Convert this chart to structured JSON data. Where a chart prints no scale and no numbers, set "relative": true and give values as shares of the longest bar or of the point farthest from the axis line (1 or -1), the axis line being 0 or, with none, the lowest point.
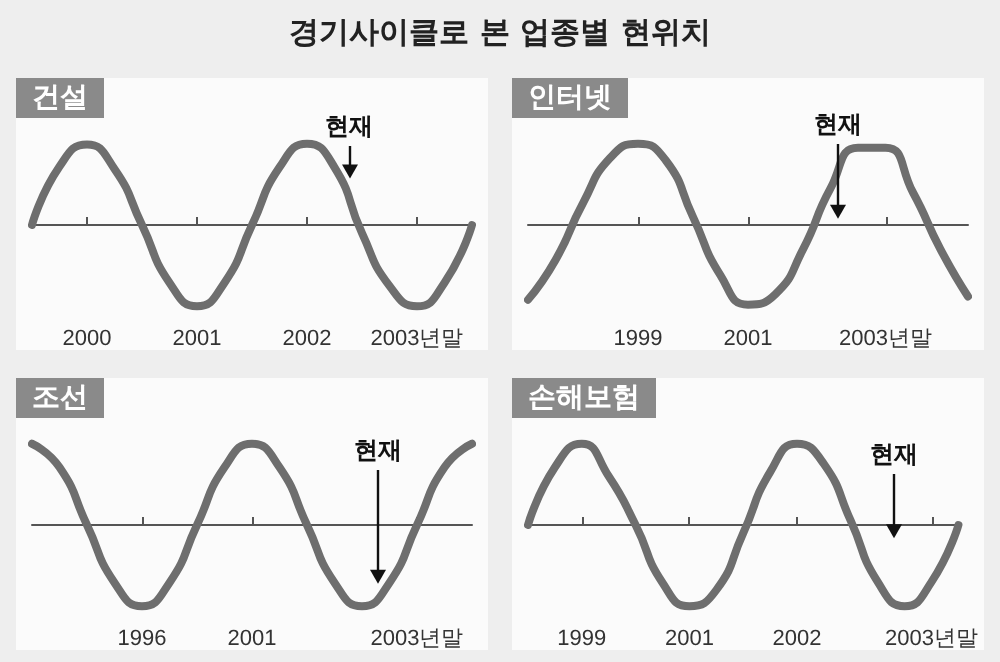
{
  "chart_data": [
    {
      "type": "other",
      "title": "경기사이클로 본 업종별 현위치"
    },
    {
      "type": "line",
      "title": "건설",
      "relative": true,
      "color": "#6e6e6e",
      "marker": "none",
      "categories": [
        null,
        null,
        "2000",
        null,
        null,
        null,
        "2001",
        null,
        null,
        null,
        "2002",
        null,
        null,
        null,
        "2003년말",
        null,
        null
      ],
      "values": [
        0,
        0.72,
        0.99,
        0.69,
        0,
        -0.71,
        -1,
        -0.71,
        0,
        0.71,
        1,
        0.71,
        -0.1,
        -0.75,
        -1,
        -0.71,
        0
      ],
      "annotations": [
        "현재"
      ]
    },
    {
      "type": "line",
      "title": "인터넷",
      "relative": true,
      "color": "#6e6e6e",
      "marker": "none",
      "categories": [
        null,
        null,
        null,
        null,
        "1999",
        null,
        null,
        null,
        "2001",
        null,
        null,
        null,
        null,
        "2003년말",
        null,
        null,
        null
      ],
      "values": [
        -0.92,
        -0.43,
        0.27,
        0.83,
        1,
        0.8,
        0.1,
        -0.62,
        -0.98,
        -0.85,
        -0.3,
        0.45,
        0.95,
        0.95,
        0.4,
        -0.3,
        -0.88
      ],
      "annotations": [
        "현재"
      ]
    },
    {
      "type": "line",
      "title": "조선",
      "relative": true,
      "color": "#6e6e6e",
      "marker": "none",
      "categories": [
        null,
        null,
        null,
        null,
        "1996",
        null,
        null,
        null,
        "2001",
        null,
        null,
        null,
        null,
        null,
        "2003년말",
        null,
        null
      ],
      "values": [
        1,
        0.71,
        0,
        -0.71,
        -1,
        -0.71,
        0,
        0.71,
        1,
        0.71,
        0,
        -0.71,
        -1,
        -0.71,
        0,
        0.71,
        1
      ],
      "annotations": [
        "현재"
      ]
    },
    {
      "type": "line",
      "title": "손해보험",
      "relative": true,
      "color": "#6e6e6e",
      "marker": "none",
      "categories": [
        null,
        null,
        "1999",
        null,
        null,
        null,
        "2001",
        null,
        null,
        null,
        "2002",
        null,
        null,
        null,
        null,
        "2003년말",
        null
      ],
      "values": [
        0,
        0.71,
        1,
        0.6,
        0,
        -0.71,
        -1,
        -0.8,
        -0.1,
        0.65,
        1,
        0.75,
        0.05,
        -0.7,
        -1,
        -0.7,
        0
      ],
      "annotations": [
        "현재"
      ]
    }
  ]
}
